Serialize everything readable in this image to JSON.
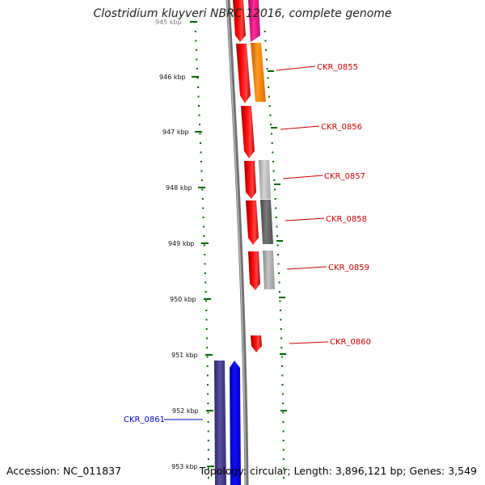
{
  "title": "Clostridium kluyveri NBRC 12016, complete genome",
  "footer": {
    "accession": "Accession: NC_011837",
    "summary": "Topology: circular; Length: 3,896,121 bp; Genes: 3,549"
  },
  "scale": {
    "ticks": [
      "945 kbp",
      "946 kbp",
      "947 kbp",
      "948 kbp",
      "949 kbp",
      "950 kbp",
      "951 kbp",
      "952 kbp",
      "953 kbp"
    ]
  },
  "genes": [
    {
      "id": "CKR_0855",
      "strand": "+",
      "color": "#ff8c00"
    },
    {
      "id": "CKR_0856",
      "strand": "+",
      "color": "#ff0000"
    },
    {
      "id": "CKR_0857",
      "strand": "+",
      "color": "#bbbbbb"
    },
    {
      "id": "CKR_0858",
      "strand": "+",
      "color": "#666666"
    },
    {
      "id": "CKR_0859",
      "strand": "+",
      "color": "#aaaaaa"
    },
    {
      "id": "CKR_0860",
      "strand": "+",
      "color": "#ff0000"
    },
    {
      "id": "CKR_0861",
      "strand": "-",
      "color": "#0000ff"
    }
  ],
  "colors": {
    "label_forward": "#cc0000",
    "label_reverse": "#0000cc",
    "ticks": "#006600",
    "backbone": "#888888",
    "pink": "#ff1493",
    "indigo": "#4b3f8f"
  }
}
